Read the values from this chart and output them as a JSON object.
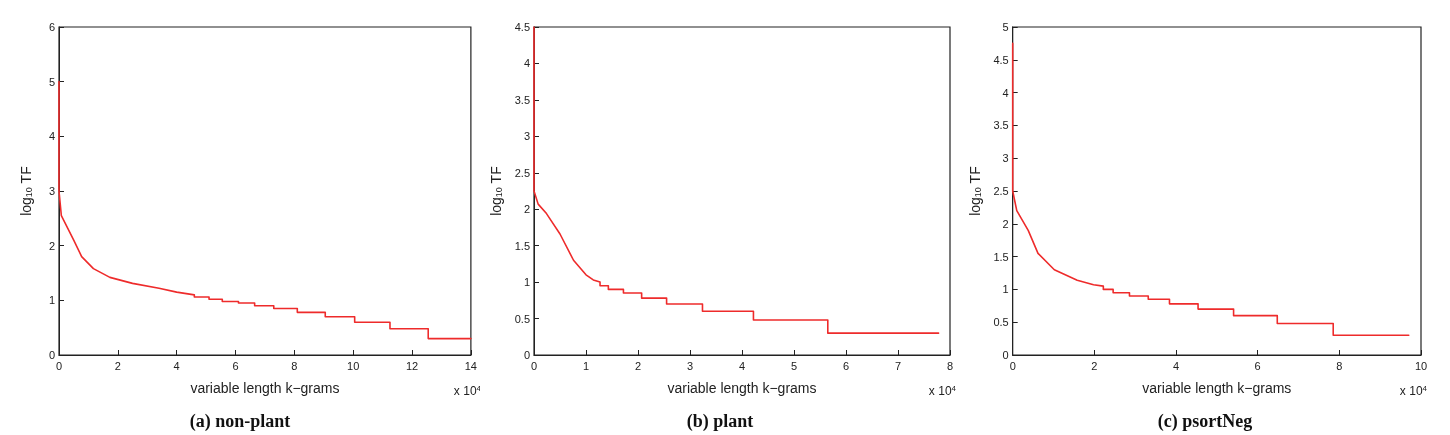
{
  "chart_data": [
    {
      "type": "line",
      "title": "(a) non-plant",
      "xlabel": "variable length k−grams",
      "ylabel": "log$_{10}$ TF",
      "annotations": [
        "x 10$^{4}$"
      ],
      "color": "#ee2b2b",
      "marker": "none",
      "grid": false,
      "xlim": [
        0,
        14
      ],
      "xticks": [
        0,
        2,
        4,
        6,
        8,
        10,
        12,
        14
      ],
      "ylim": [
        0,
        6
      ],
      "yticks": [
        0,
        1,
        2,
        3,
        4,
        5,
        6
      ],
      "x": [
        0,
        0,
        0.08,
        0.5,
        0.77,
        1.17,
        1.73,
        2.5,
        3.4,
        4.0,
        4.6,
        4.6,
        5.1,
        5.1,
        5.55,
        5.55,
        6.1,
        6.1,
        6.65,
        6.65,
        7.3,
        7.3,
        8.1,
        8.1,
        9.05,
        9.05,
        10.05,
        10.05,
        11.25,
        11.25,
        12.55,
        12.55,
        14
      ],
      "values": [
        5,
        3,
        2.55,
        2.1,
        1.8,
        1.58,
        1.42,
        1.31,
        1.22,
        1.15,
        1.1,
        1.06,
        1.06,
        1.02,
        1.02,
        0.98,
        0.98,
        0.95,
        0.95,
        0.9,
        0.9,
        0.85,
        0.85,
        0.78,
        0.78,
        0.7,
        0.7,
        0.6,
        0.6,
        0.48,
        0.48,
        0.3,
        0.3
      ]
    },
    {
      "type": "line",
      "title": "(b) plant",
      "xlabel": "variable length k−grams",
      "ylabel": "log$_{10}$ TF",
      "annotations": [
        "x 10$^{4}$"
      ],
      "color": "#ee2b2b",
      "marker": "none",
      "grid": false,
      "xlim": [
        0,
        8
      ],
      "xticks": [
        0,
        1,
        2,
        3,
        4,
        5,
        6,
        7,
        8
      ],
      "ylim": [
        0,
        4.5
      ],
      "yticks": [
        0,
        0.5,
        1,
        1.5,
        2,
        2.5,
        3,
        3.5,
        4,
        4.5
      ],
      "x": [
        0,
        0,
        0.08,
        0.24,
        0.5,
        0.76,
        1.0,
        1.14,
        1.27,
        1.27,
        1.43,
        1.43,
        1.72,
        1.72,
        2.07,
        2.07,
        2.55,
        2.55,
        3.24,
        3.24,
        4.22,
        4.22,
        5.65,
        5.65,
        7.78
      ],
      "values": [
        4.5,
        2.25,
        2.07,
        1.94,
        1.66,
        1.3,
        1.1,
        1.03,
        1.0,
        0.95,
        0.95,
        0.9,
        0.9,
        0.85,
        0.85,
        0.78,
        0.78,
        0.7,
        0.7,
        0.6,
        0.6,
        0.48,
        0.48,
        0.3,
        0.3
      ]
    },
    {
      "type": "line",
      "title": "(c) psortNeg",
      "xlabel": "variable length k−grams",
      "ylabel": "log$_{10}$ TF",
      "annotations": [
        "x 10$^{4}$"
      ],
      "color": "#ee2b2b",
      "marker": "none",
      "grid": false,
      "xlim": [
        0,
        10
      ],
      "xticks": [
        0,
        2,
        4,
        6,
        8,
        10
      ],
      "ylim": [
        0,
        5
      ],
      "yticks": [
        0,
        0.5,
        1,
        1.5,
        2,
        2.5,
        3,
        3.5,
        4,
        4.5,
        5
      ],
      "x": [
        0,
        0,
        0.1,
        0.38,
        0.62,
        1.02,
        1.58,
        1.98,
        2.22,
        2.22,
        2.46,
        2.46,
        2.86,
        2.86,
        3.32,
        3.32,
        3.84,
        3.84,
        4.54,
        4.54,
        5.41,
        5.41,
        6.48,
        6.48,
        7.85,
        7.85,
        9.7
      ],
      "values": [
        4.75,
        2.5,
        2.2,
        1.9,
        1.55,
        1.3,
        1.14,
        1.07,
        1.05,
        1.0,
        1.0,
        0.95,
        0.95,
        0.9,
        0.9,
        0.85,
        0.85,
        0.78,
        0.78,
        0.7,
        0.7,
        0.6,
        0.6,
        0.48,
        0.48,
        0.3,
        0.3
      ]
    }
  ]
}
